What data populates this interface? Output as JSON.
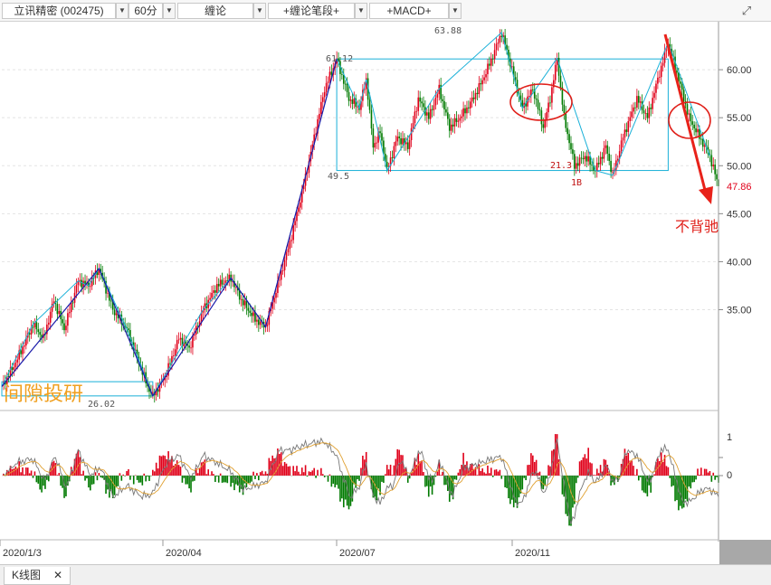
{
  "toolbar": {
    "stock": "立讯精密 (002475)",
    "period": "60分",
    "indicator1": "缠论",
    "indicator2": "+缠论笔段+",
    "indicator3": "+MACD+",
    "expand_icon": "expand-icon"
  },
  "bottom_tab": {
    "label": "K线图",
    "close": "✕"
  },
  "watermark": "间隙投研",
  "annotations": {
    "no_divergence": "不背驰",
    "last_price": "47.86",
    "point_label_1b": "1B",
    "zs_top": "61.12",
    "zs_bottom": "49.5",
    "peak": "63.88",
    "low_left": "26.02",
    "low_mid": "21.3"
  },
  "colors": {
    "up": "#e0001a",
    "down": "#007a00",
    "bi": "#c000c0",
    "duan": "#1a1aaa",
    "zhongshu": "#19b0d8"
  },
  "chart_data": {
    "type": "candlestick",
    "x_ticks": [
      "2020/1/3",
      "2020/04",
      "2020/07",
      "2020/11"
    ],
    "y_ticks": [
      "60.00",
      "55.00",
      "50.00",
      "45.00",
      "40.00",
      "35.00"
    ],
    "ylim": [
      24.5,
      65
    ],
    "path": [
      [
        0,
        27
      ],
      [
        8,
        29.5
      ],
      [
        18,
        33.5
      ],
      [
        24,
        32
      ],
      [
        30,
        36
      ],
      [
        36,
        33
      ],
      [
        44,
        38
      ],
      [
        50,
        37.5
      ],
      [
        56,
        39.3
      ],
      [
        64,
        35
      ],
      [
        72,
        33
      ],
      [
        78,
        30
      ],
      [
        84,
        27
      ],
      [
        87,
        26.02
      ],
      [
        94,
        28
      ],
      [
        102,
        32
      ],
      [
        108,
        31
      ],
      [
        116,
        35
      ],
      [
        124,
        37.5
      ],
      [
        132,
        38.3
      ],
      [
        138,
        36
      ],
      [
        146,
        34
      ],
      [
        152,
        33.2
      ],
      [
        158,
        37
      ],
      [
        166,
        42
      ],
      [
        174,
        48
      ],
      [
        180,
        53
      ],
      [
        186,
        58
      ],
      [
        193,
        61.12
      ],
      [
        200,
        57
      ],
      [
        206,
        56
      ],
      [
        210,
        59
      ],
      [
        214,
        52
      ],
      [
        218,
        53.5
      ],
      [
        222,
        49.5
      ],
      [
        228,
        53
      ],
      [
        234,
        52
      ],
      [
        240,
        57
      ],
      [
        246,
        55
      ],
      [
        252,
        58
      ],
      [
        258,
        54
      ],
      [
        264,
        55
      ],
      [
        270,
        56.5
      ],
      [
        276,
        58.5
      ],
      [
        282,
        61
      ],
      [
        288,
        63.88
      ],
      [
        294,
        60
      ],
      [
        300,
        56
      ],
      [
        306,
        58
      ],
      [
        312,
        54
      ],
      [
        316,
        57
      ],
      [
        320,
        61.2
      ],
      [
        324,
        55
      ],
      [
        330,
        50
      ],
      [
        336,
        51
      ],
      [
        342,
        49.5
      ],
      [
        348,
        52
      ],
      [
        352,
        49
      ],
      [
        358,
        53
      ],
      [
        366,
        57
      ],
      [
        372,
        55
      ],
      [
        378,
        59
      ],
      [
        384,
        62.8
      ],
      [
        390,
        59
      ],
      [
        396,
        55
      ],
      [
        402,
        53
      ],
      [
        408,
        51
      ],
      [
        413,
        47.86
      ]
    ],
    "bi": [
      [
        0,
        27
      ],
      [
        18,
        33.5
      ],
      [
        44,
        38
      ],
      [
        50,
        37.5
      ],
      [
        56,
        39.3
      ],
      [
        72,
        33
      ],
      [
        87,
        26.02
      ],
      [
        116,
        35
      ],
      [
        132,
        38.3
      ],
      [
        152,
        33.2
      ],
      [
        193,
        61.12
      ],
      [
        206,
        56
      ],
      [
        210,
        59
      ],
      [
        222,
        49.5
      ],
      [
        252,
        58
      ],
      [
        288,
        63.88
      ],
      [
        300,
        56
      ],
      [
        320,
        61.2
      ],
      [
        342,
        49.5
      ],
      [
        352,
        49
      ],
      [
        384,
        62.8
      ],
      [
        408,
        51
      ]
    ],
    "duan": [
      [
        0,
        27
      ],
      [
        56,
        39.3
      ],
      [
        87,
        26.02
      ],
      [
        132,
        38.3
      ],
      [
        152,
        33.2
      ],
      [
        193,
        61.12
      ]
    ],
    "zhongshu": [
      {
        "x0": 0,
        "x1": 87,
        "y0": 26.02,
        "y1": 27.5
      },
      {
        "x0": 193,
        "x1": 384,
        "y0": 49.5,
        "y1": 61.12
      }
    ],
    "macd_ylim": [
      -3.5,
      3.5
    ],
    "macd_ticks": [
      "1",
      "0"
    ]
  }
}
